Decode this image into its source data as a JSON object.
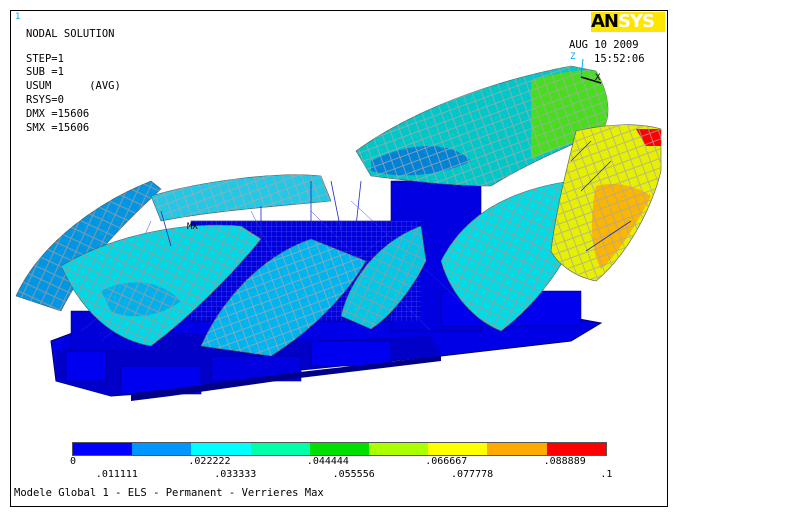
{
  "window_number": "1",
  "logo": {
    "part1": "AN",
    "part2": "SYS"
  },
  "info": {
    "title": "NODAL SOLUTION",
    "step": "STEP=1",
    "sub": "SUB =1",
    "usum": "USUM      (AVG)",
    "rsys": "RSYS=0",
    "dmx": "DMX =15606",
    "smx": "SMX =15606"
  },
  "date": "AUG 10 2009",
  "time": "15:52:06",
  "axes": {
    "z": "Z",
    "x": "X"
  },
  "mx_label": "MX",
  "legend": {
    "colors": [
      "#0000ff",
      "#0096ff",
      "#00ffff",
      "#00ffaa",
      "#00e000",
      "#aaff00",
      "#ffff00",
      "#ffaa00",
      "#ff0000"
    ],
    "labels_top": [
      "0",
      ".022222",
      ".044444",
      ".066667",
      ".088889"
    ],
    "labels_bottom": [
      ".011111",
      ".033333",
      ".055556",
      ".077778",
      ".1"
    ]
  },
  "footer": "Modele Global 1 - ELS - Permanent - Verrieres Max"
}
